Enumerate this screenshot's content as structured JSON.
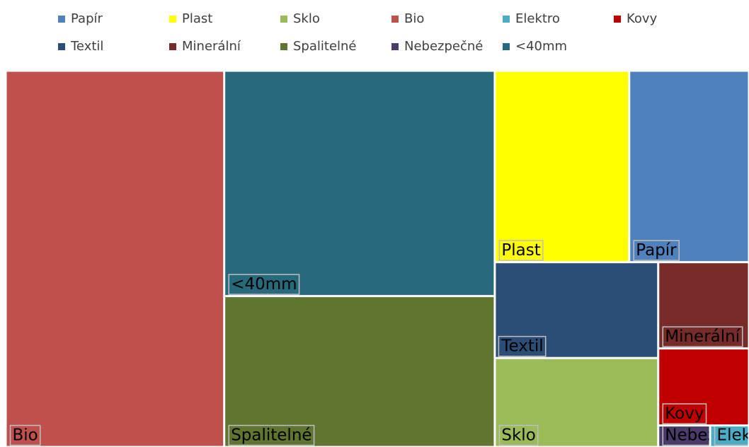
{
  "chart_data": {
    "type": "treemap",
    "categories": [
      "Papír",
      "Plast",
      "Sklo",
      "Bio",
      "Elektro",
      "Kovy",
      "Textil",
      "Minerální",
      "Spalitelné",
      "Nebezpečné",
      "<40mm"
    ],
    "values": [
      8.2,
      9.2,
      5.2,
      29.4,
      0.3,
      2.5,
      5.6,
      2.8,
      14.6,
      0.4,
      21.8
    ],
    "colors": [
      "#4f81bd",
      "#ffff00",
      "#9bbb59",
      "#c0504d",
      "#4bacc6",
      "#c00000",
      "#2c4d75",
      "#772c2a",
      "#5f7530",
      "#4a3b6b",
      "#276a7c"
    ],
    "legend": "top"
  }
}
